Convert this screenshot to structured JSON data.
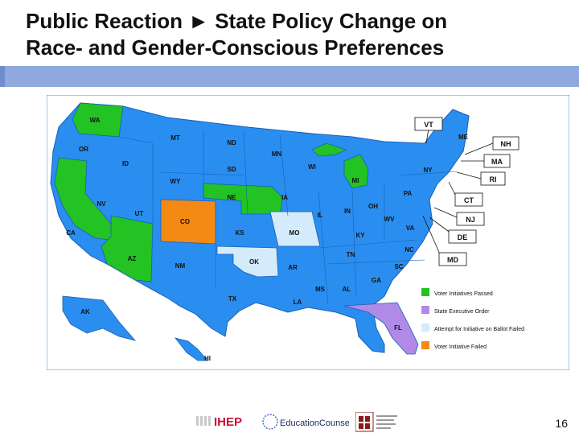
{
  "slide": {
    "title_line1": "Public Reaction ► State Policy Change on",
    "title_line2": "Race- and Gender-Conscious Preferences",
    "page_number": "16"
  },
  "colors": {
    "ocean_frame": "#4a8ed6",
    "default_state": "#2a8ef0",
    "voter_passed": "#22c322",
    "executive_order": "#b08ae6",
    "attempt_failed": "#d4ebfb",
    "voter_failed": "#f48a14",
    "band": "#8fa9de"
  },
  "legend": [
    {
      "key": "voter_passed",
      "label": "Voter Initiatives Passed"
    },
    {
      "key": "executive_order",
      "label": "State Executive Order"
    },
    {
      "key": "attempt_failed",
      "label": "Attempt for Initiative on Ballot Failed"
    },
    {
      "key": "voter_failed",
      "label": "Voter Initiative Failed"
    }
  ],
  "state_labels": {
    "WA": "WA",
    "OR": "OR",
    "CA": "CA",
    "NV": "NV",
    "ID": "ID",
    "MT": "MT",
    "WY": "WY",
    "UT": "UT",
    "AZ": "AZ",
    "CO": "CO",
    "NM": "NM",
    "ND": "ND",
    "SD": "SD",
    "NE": "NE",
    "KS": "KS",
    "OK": "OK",
    "TX": "TX",
    "MN": "MN",
    "IA": "IA",
    "MO": "MO",
    "AR": "AR",
    "LA": "LA",
    "WI": "WI",
    "IL": "IL",
    "MI": "MI",
    "IN": "IN",
    "OH": "OH",
    "KY": "KY",
    "TN": "TN",
    "MS": "MS",
    "AL": "AL",
    "GA": "GA",
    "FL": "FL",
    "SC": "SC",
    "NC": "NC",
    "VA": "VA",
    "WV": "WV",
    "PA": "PA",
    "NY": "NY",
    "ME": "ME",
    "AK": "AK",
    "HI": "HI"
  },
  "callouts": {
    "VT": "VT",
    "NH": "NH",
    "MA": "MA",
    "RI": "RI",
    "CT": "CT",
    "NJ": "NJ",
    "DE": "DE",
    "MD": "MD"
  },
  "footer_logos": {
    "ihep": "IHEP",
    "education_counsel": "EducationCounsel"
  }
}
